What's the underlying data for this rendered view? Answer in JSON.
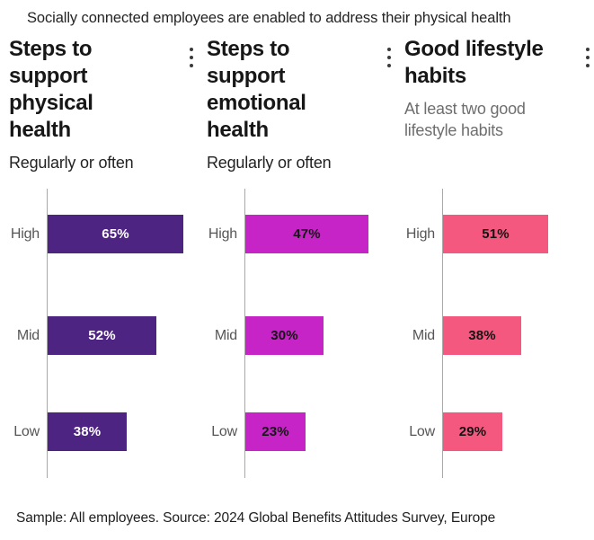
{
  "page": {
    "title": "Socially connected employees are enabled to address their physical health",
    "footer": "Sample: All employees. Source: 2024 Global Benefits Attitudes Survey, Europe"
  },
  "chart_data": [
    {
      "type": "bar",
      "orientation": "horizontal",
      "title": "Steps to support physical health",
      "subtitle": "Regularly or often",
      "subtitle_color": "#222222",
      "categories": [
        "High",
        "Mid",
        "Low"
      ],
      "values": [
        65,
        52,
        38
      ],
      "value_suffix": "%",
      "xlim": [
        0,
        69
      ],
      "grid": false,
      "bar_color": "#4e2483",
      "value_label_color": "#ffffff",
      "menu_icon": "kebab-dots-vertical"
    },
    {
      "type": "bar",
      "orientation": "horizontal",
      "title": "Steps to support emotional health",
      "subtitle": "Regularly or often",
      "subtitle_color": "#222222",
      "categories": [
        "High",
        "Mid",
        "Low"
      ],
      "values": [
        47,
        30,
        23
      ],
      "value_suffix": "%",
      "xlim": [
        0,
        55
      ],
      "grid": false,
      "bar_color": "#c724c7",
      "value_label_color": "#141414",
      "menu_icon": "kebab-dots-vertical"
    },
    {
      "type": "bar",
      "orientation": "horizontal",
      "title": "Good lifestyle habits",
      "subtitle": "At least two good lifestyle habits",
      "subtitle_color": "#6e6e6e",
      "categories": [
        "High",
        "Mid",
        "Low"
      ],
      "values": [
        51,
        38,
        29
      ],
      "value_suffix": "%",
      "xlim": [
        0,
        70
      ],
      "grid": false,
      "bar_color": "#f4587e",
      "value_label_color": "#141414",
      "menu_icon": "kebab-dots-vertical"
    }
  ]
}
